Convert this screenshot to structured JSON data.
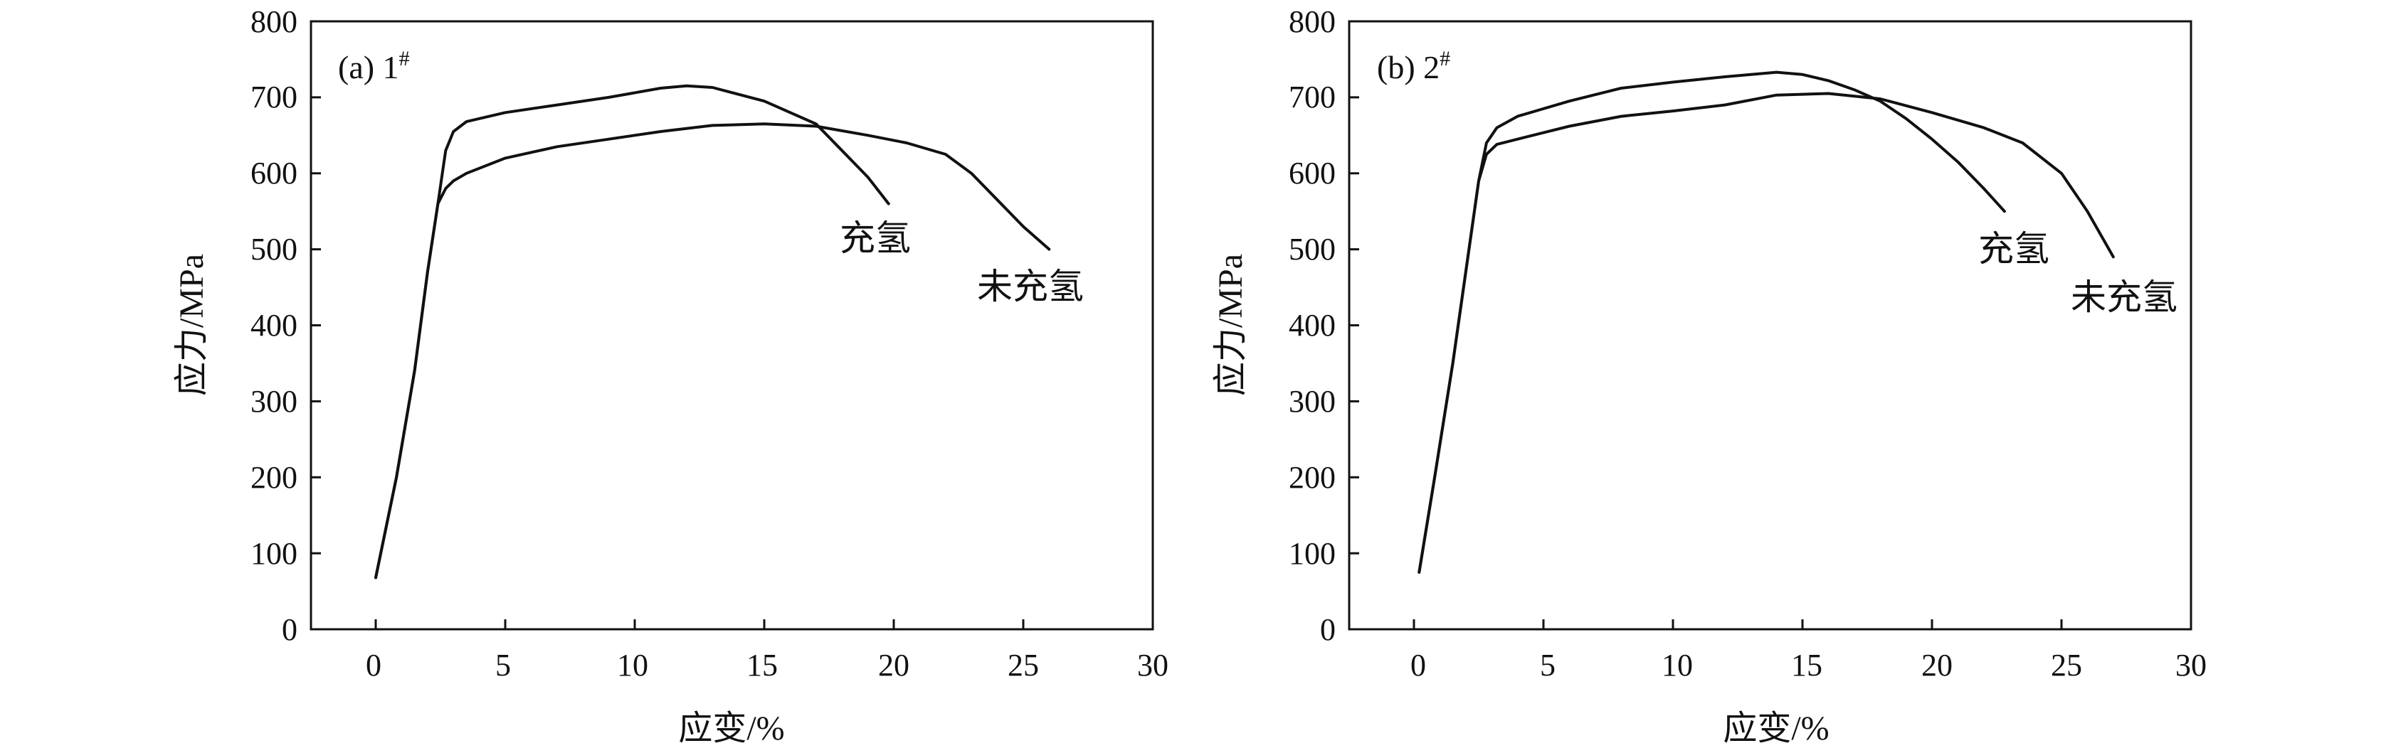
{
  "chart_data": [
    {
      "type": "line",
      "panel_label": "(a) 1",
      "panel_label_sup": "#",
      "xlabel": "应变/%",
      "ylabel": "应力/MPa",
      "xlim": [
        -2.5,
        30
      ],
      "ylim": [
        0,
        800
      ],
      "xticks": [
        "0",
        "5",
        "10",
        "15",
        "20",
        "25",
        "30"
      ],
      "yticks": [
        "0",
        "100",
        "200",
        "300",
        "400",
        "500",
        "600",
        "700",
        "800"
      ],
      "series": [
        {
          "name": "未充氢",
          "x": [
            0,
            0.8,
            1.5,
            2.0,
            2.4,
            2.7,
            3.0,
            3.5,
            5,
            7,
            9,
            11,
            13,
            15,
            17,
            19,
            20.5,
            22,
            23,
            24,
            25,
            26
          ],
          "y": [
            68,
            200,
            340,
            470,
            560,
            580,
            590,
            600,
            620,
            635,
            645,
            655,
            663,
            665,
            662,
            650,
            640,
            625,
            600,
            565,
            530,
            500
          ]
        },
        {
          "name": "充氢",
          "x": [
            0,
            0.8,
            1.5,
            2.0,
            2.4,
            2.7,
            3.0,
            3.5,
            5,
            7,
            9,
            11,
            12,
            13,
            15,
            17,
            18,
            19,
            19.8
          ],
          "y": [
            68,
            200,
            340,
            470,
            560,
            630,
            655,
            668,
            680,
            690,
            700,
            712,
            715,
            713,
            695,
            665,
            630,
            595,
            560
          ]
        }
      ],
      "annotations": [
        "充氢",
        "未充氢"
      ]
    },
    {
      "type": "line",
      "panel_label": "(b) 2",
      "panel_label_sup": "#",
      "xlabel": "应变/%",
      "ylabel": "应力/MPa",
      "xlim": [
        -2.5,
        30
      ],
      "ylim": [
        0,
        800
      ],
      "xticks": [
        "0",
        "5",
        "10",
        "15",
        "20",
        "25",
        "30"
      ],
      "yticks": [
        "0",
        "100",
        "200",
        "300",
        "400",
        "500",
        "600",
        "700",
        "800"
      ],
      "series": [
        {
          "name": "未充氢",
          "x": [
            0.2,
            0.8,
            1.5,
            2.0,
            2.5,
            2.8,
            3.2,
            4,
            6,
            8,
            10,
            12,
            14,
            16,
            18,
            20,
            22,
            23.5,
            25,
            26,
            27
          ],
          "y": [
            75,
            200,
            350,
            470,
            590,
            625,
            638,
            645,
            662,
            675,
            682,
            690,
            703,
            705,
            698,
            680,
            660,
            640,
            600,
            550,
            490
          ]
        },
        {
          "name": "充氢",
          "x": [
            0.2,
            0.8,
            1.5,
            2.0,
            2.5,
            2.8,
            3.2,
            4,
            6,
            8,
            10,
            12,
            14,
            15,
            16,
            17,
            18,
            19,
            20,
            21,
            22,
            22.8
          ],
          "y": [
            75,
            200,
            350,
            470,
            590,
            640,
            660,
            675,
            695,
            712,
            720,
            727,
            733,
            730,
            722,
            710,
            695,
            672,
            645,
            615,
            580,
            550
          ]
        }
      ],
      "annotations": [
        "充氢",
        "未充氢"
      ]
    }
  ]
}
